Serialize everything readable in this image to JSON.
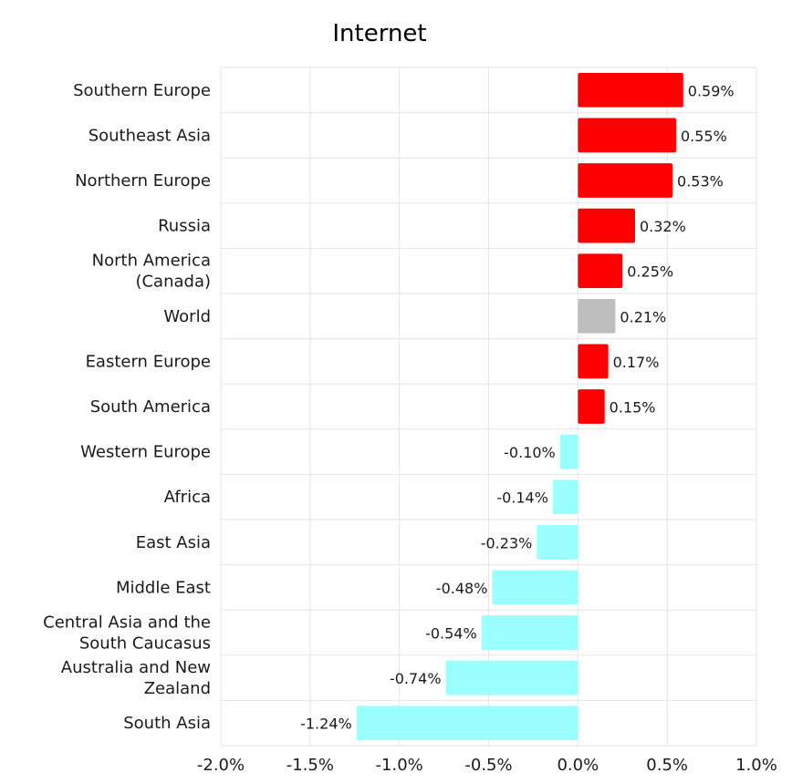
{
  "chart_data": {
    "type": "bar",
    "orientation": "horizontal",
    "title": "Internet",
    "xlabel": "",
    "ylabel": "",
    "xlim": [
      -2.0,
      1.0
    ],
    "x_ticks": [
      -2.0,
      -1.5,
      -1.0,
      -0.5,
      0.0,
      0.5,
      1.0
    ],
    "x_tick_labels": [
      "-2.0%",
      "-1.5%",
      "-1.0%",
      "-0.5%",
      "0.0%",
      "0.5%",
      "1.0%"
    ],
    "grid": true,
    "legend": "none",
    "categories": [
      [
        "Southern Europe"
      ],
      [
        "Southeast Asia"
      ],
      [
        "Northern Europe"
      ],
      [
        "Russia"
      ],
      [
        "North America",
        "(Canada)"
      ],
      [
        "World"
      ],
      [
        "Eastern Europe"
      ],
      [
        "South America"
      ],
      [
        "Western Europe"
      ],
      [
        "Africa"
      ],
      [
        "East Asia"
      ],
      [
        "Middle East"
      ],
      [
        "Central Asia and the",
        "South Caucasus"
      ],
      [
        "Australia and New",
        "Zealand"
      ],
      [
        "South Asia"
      ]
    ],
    "values": [
      0.59,
      0.55,
      0.53,
      0.32,
      0.25,
      0.21,
      0.17,
      0.15,
      -0.1,
      -0.14,
      -0.23,
      -0.48,
      -0.54,
      -0.74,
      -1.24
    ],
    "value_labels": [
      "0.59%",
      "0.55%",
      "0.53%",
      "0.32%",
      "0.25%",
      "0.21%",
      "0.17%",
      "0.15%",
      "-0.10%",
      "-0.14%",
      "-0.23%",
      "-0.48%",
      "-0.54%",
      "-0.74%",
      "-1.24%"
    ],
    "highlight_category": "World",
    "colors": {
      "positive": "#ff0000",
      "negative": "#99ffff",
      "highlight": "#bebebe",
      "grid": "#e6e6e6",
      "axis_frame": "#e6e6e6",
      "text": "#1a1a1a"
    }
  }
}
